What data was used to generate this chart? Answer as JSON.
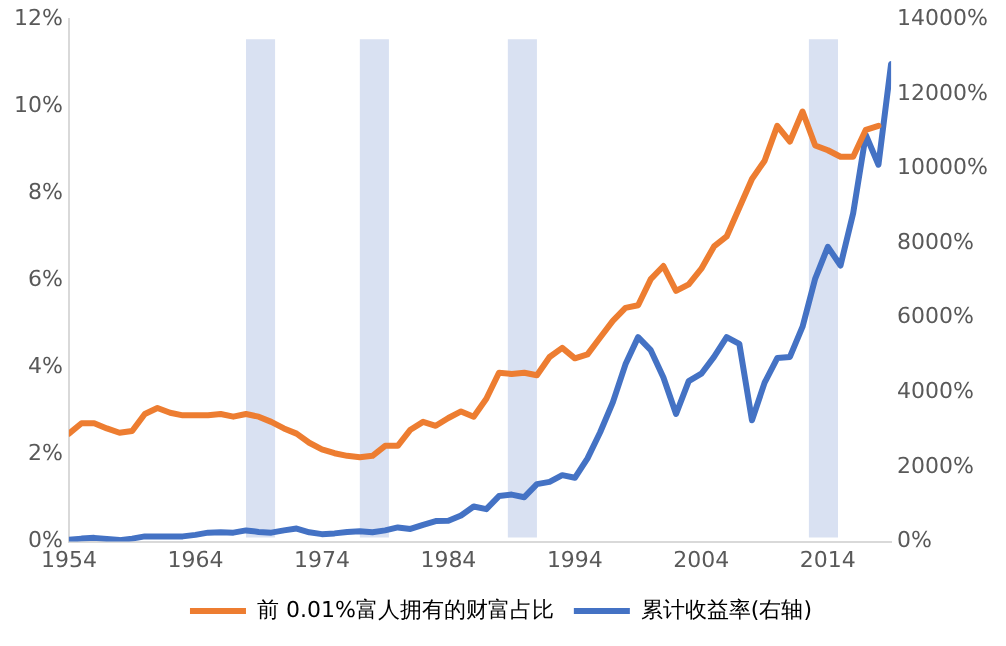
{
  "chart_data": {
    "type": "line",
    "x": [
      1954,
      1955,
      1956,
      1957,
      1958,
      1959,
      1960,
      1961,
      1962,
      1963,
      1964,
      1965,
      1966,
      1967,
      1968,
      1969,
      1970,
      1971,
      1972,
      1973,
      1974,
      1975,
      1976,
      1977,
      1978,
      1979,
      1980,
      1981,
      1982,
      1983,
      1984,
      1985,
      1986,
      1987,
      1988,
      1989,
      1990,
      1991,
      1992,
      1993,
      1994,
      1995,
      1996,
      1997,
      1998,
      1999,
      2000,
      2001,
      2002,
      2003,
      2004,
      2005,
      2006,
      2007,
      2008,
      2009,
      2010,
      2011,
      2012,
      2013,
      2014,
      2015,
      2016,
      2017,
      2018,
      2019
    ],
    "series": [
      {
        "name": "前 0.01%富人拥有的财富占比",
        "color": "#ed7d31",
        "values": [
          2.48,
          2.72,
          2.72,
          2.6,
          2.5,
          2.54,
          2.93,
          3.07,
          2.96,
          2.9,
          2.9,
          2.9,
          2.93,
          2.87,
          2.93,
          2.87,
          2.75,
          2.6,
          2.48,
          2.27,
          2.12,
          2.03,
          1.97,
          1.94,
          1.97,
          2.2,
          2.2,
          2.57,
          2.75,
          2.66,
          2.84,
          2.99,
          2.87,
          3.28,
          3.88,
          3.85,
          3.88,
          3.82,
          4.24,
          4.45,
          4.21,
          4.3,
          4.69,
          5.07,
          5.37,
          5.43,
          6.03,
          6.33,
          5.76,
          5.91,
          6.27,
          6.78,
          7.01,
          7.67,
          8.33,
          8.75,
          9.55,
          9.19,
          9.88,
          9.1,
          8.99,
          8.84,
          8.84,
          9.46,
          9.55,
          null
        ]
      },
      {
        "name": "累计收益率(右轴)",
        "color": "#4472c4",
        "axis": "y2",
        "values": [
          50,
          80,
          100,
          70,
          40,
          80,
          140,
          140,
          140,
          140,
          180,
          240,
          250,
          240,
          300,
          260,
          240,
          300,
          350,
          250,
          200,
          220,
          260,
          280,
          250,
          300,
          380,
          340,
          450,
          550,
          560,
          700,
          940,
          870,
          1220,
          1260,
          1190,
          1540,
          1600,
          1780,
          1710,
          2230,
          2930,
          3730,
          4750,
          5480,
          5130,
          4400,
          3420,
          4300,
          4500,
          4950,
          5480,
          5300,
          3250,
          4260,
          4920,
          4950,
          5760,
          7050,
          7900,
          7400,
          8800,
          10900,
          10100,
          12800
        ]
      }
    ],
    "xlim": [
      1954,
      2019
    ],
    "xticks": [
      1954,
      1964,
      1974,
      1984,
      1994,
      2004,
      2014
    ],
    "ylim": [
      0,
      12
    ],
    "yticks": [
      {
        "value": 0,
        "label": "0%"
      },
      {
        "value": 2,
        "label": "2%"
      },
      {
        "value": 4,
        "label": "4%"
      },
      {
        "value": 6,
        "label": "6%"
      },
      {
        "value": 8,
        "label": "8%"
      },
      {
        "value": 10,
        "label": "10%"
      },
      {
        "value": 12,
        "label": "12%"
      }
    ],
    "y2lim": [
      0,
      14000
    ],
    "y2ticks": [
      {
        "value": 0,
        "label": "0%"
      },
      {
        "value": 2000,
        "label": "2000%"
      },
      {
        "value": 4000,
        "label": "4000%"
      },
      {
        "value": 6000,
        "label": "6000%"
      },
      {
        "value": 8000,
        "label": "8000%"
      },
      {
        "value": 10000,
        "label": "10000%"
      },
      {
        "value": 12000,
        "label": "12000%"
      },
      {
        "value": 14000,
        "label": "14000%"
      }
    ],
    "bands": [
      {
        "axis": "x",
        "from": 1968,
        "to": 1970.3,
        "color": "#d9e1f2"
      },
      {
        "axis": "x",
        "from": 1977,
        "to": 1979.3,
        "color": "#d9e1f2"
      },
      {
        "axis": "x",
        "from": 1988.7,
        "to": 1991,
        "color": "#d9e1f2"
      },
      {
        "axis": "x",
        "from": 2012.5,
        "to": 2014.8,
        "color": "#d9e1f2"
      }
    ],
    "grid": false,
    "legend": "bottom",
    "marker": "none",
    "line_style": "solid"
  }
}
